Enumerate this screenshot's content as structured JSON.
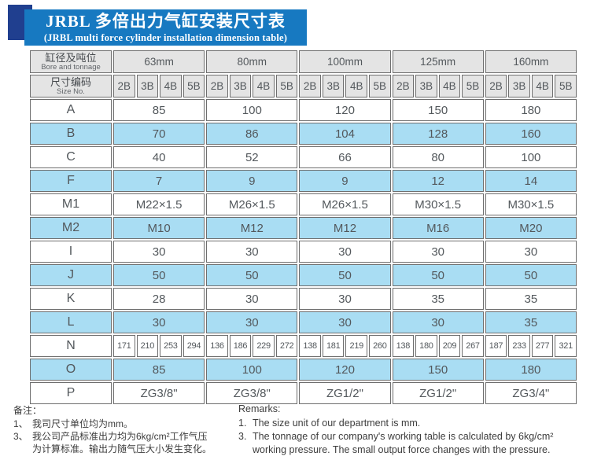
{
  "banner": {
    "title": "JRBL 多倍出力气缸安装尺寸表",
    "subtitle": "(JRBL multi force cylinder installation dimension table)"
  },
  "colors": {
    "banner_bg": "#1779c1",
    "banner_fold": "#203f8f",
    "banner_text": "#ffffff",
    "header_bg": "#e4e4e4",
    "shaded_row": "#a9ddf3",
    "border": "#6e6e6e",
    "table_text": "#53585c"
  },
  "table": {
    "header": {
      "col1_line1": "缸径及吨位",
      "col1_line2": "Bore and tonnage",
      "col2_line1": "尺寸编码",
      "col2_line2": "Size No.",
      "bore_sizes": [
        "63mm",
        "80mm",
        "100mm",
        "125mm",
        "160mm"
      ],
      "size_codes": [
        "2B",
        "3B",
        "4B",
        "5B"
      ]
    },
    "rows": [
      {
        "label": "A",
        "merged": true,
        "shaded": false,
        "values": [
          "85",
          "100",
          "120",
          "150",
          "180"
        ]
      },
      {
        "label": "B",
        "merged": true,
        "shaded": true,
        "values": [
          "70",
          "86",
          "104",
          "128",
          "160"
        ]
      },
      {
        "label": "C",
        "merged": true,
        "shaded": false,
        "values": [
          "40",
          "52",
          "66",
          "80",
          "100"
        ]
      },
      {
        "label": "F",
        "merged": true,
        "shaded": true,
        "values": [
          "7",
          "9",
          "9",
          "12",
          "14"
        ]
      },
      {
        "label": "M1",
        "merged": true,
        "shaded": false,
        "values": [
          "M22×1.5",
          "M26×1.5",
          "M26×1.5",
          "M30×1.5",
          "M30×1.5"
        ]
      },
      {
        "label": "M2",
        "merged": true,
        "shaded": true,
        "values": [
          "M10",
          "M12",
          "M12",
          "M16",
          "M20"
        ]
      },
      {
        "label": "I",
        "merged": true,
        "shaded": false,
        "values": [
          "30",
          "30",
          "30",
          "30",
          "30"
        ]
      },
      {
        "label": "J",
        "merged": true,
        "shaded": true,
        "values": [
          "50",
          "50",
          "50",
          "50",
          "50"
        ]
      },
      {
        "label": "K",
        "merged": true,
        "shaded": false,
        "values": [
          "28",
          "30",
          "30",
          "35",
          "35"
        ]
      },
      {
        "label": "L",
        "merged": true,
        "shaded": true,
        "values": [
          "30",
          "30",
          "30",
          "30",
          "35"
        ]
      },
      {
        "label": "N",
        "merged": false,
        "shaded": false,
        "values": [
          "171",
          "210",
          "253",
          "294",
          "136",
          "186",
          "229",
          "272",
          "138",
          "181",
          "219",
          "260",
          "138",
          "180",
          "209",
          "267",
          "187",
          "233",
          "277",
          "321"
        ]
      },
      {
        "label": "O",
        "merged": true,
        "shaded": true,
        "values": [
          "85",
          "100",
          "120",
          "150",
          "180"
        ]
      },
      {
        "label": "P",
        "merged": true,
        "shaded": false,
        "values": [
          "ZG3/8\"",
          "ZG3/8\"",
          "ZG1/2\"",
          "ZG1/2\"",
          "ZG3/4\""
        ]
      }
    ]
  },
  "notes_left": {
    "heading": "备注：",
    "item1_num": "1、",
    "item1_text": "我司尺寸单位均为mm。",
    "item2_num": "3、",
    "item2_line1": "我公司产品标准出力均为6kg/cm²工作气压",
    "item2_line2": "为计算标准。输出力随气压大小发生变化。"
  },
  "notes_right": {
    "heading": "Remarks:",
    "item1_num": "1.",
    "item1_text": "The size unit of our department is mm.",
    "item2_num": "3.",
    "item2_line1": "The tonnage of our company's working table is calculated by 6kg/cm²",
    "item2_line2": "working pressure. The small output force changes with the pressure."
  }
}
